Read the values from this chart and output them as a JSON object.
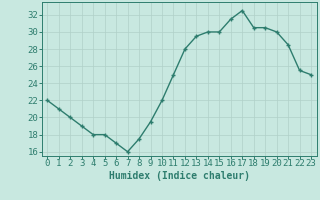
{
  "x": [
    0,
    1,
    2,
    3,
    4,
    5,
    6,
    7,
    8,
    9,
    10,
    11,
    12,
    13,
    14,
    15,
    16,
    17,
    18,
    19,
    20,
    21,
    22,
    23
  ],
  "y": [
    22,
    21,
    20,
    19,
    18,
    18,
    17,
    16,
    17.5,
    19.5,
    22,
    25,
    28,
    29.5,
    30,
    30,
    31.5,
    32.5,
    30.5,
    30.5,
    30,
    28.5,
    25.5,
    25
  ],
  "line_color": "#2e7d6e",
  "marker_color": "#2e7d6e",
  "bg_color": "#c8e8e0",
  "grid_color": "#b0d0c8",
  "xlabel": "Humidex (Indice chaleur)",
  "ylim": [
    15.5,
    33.5
  ],
  "yticks": [
    16,
    18,
    20,
    22,
    24,
    26,
    28,
    30,
    32
  ],
  "xticks": [
    0,
    1,
    2,
    3,
    4,
    5,
    6,
    7,
    8,
    9,
    10,
    11,
    12,
    13,
    14,
    15,
    16,
    17,
    18,
    19,
    20,
    21,
    22,
    23
  ],
  "xlim": [
    -0.5,
    23.5
  ],
  "tick_color": "#2e7d6e",
  "label_fontsize": 7,
  "tick_fontsize": 6.5,
  "line_width": 1.0,
  "marker_size": 3.5
}
